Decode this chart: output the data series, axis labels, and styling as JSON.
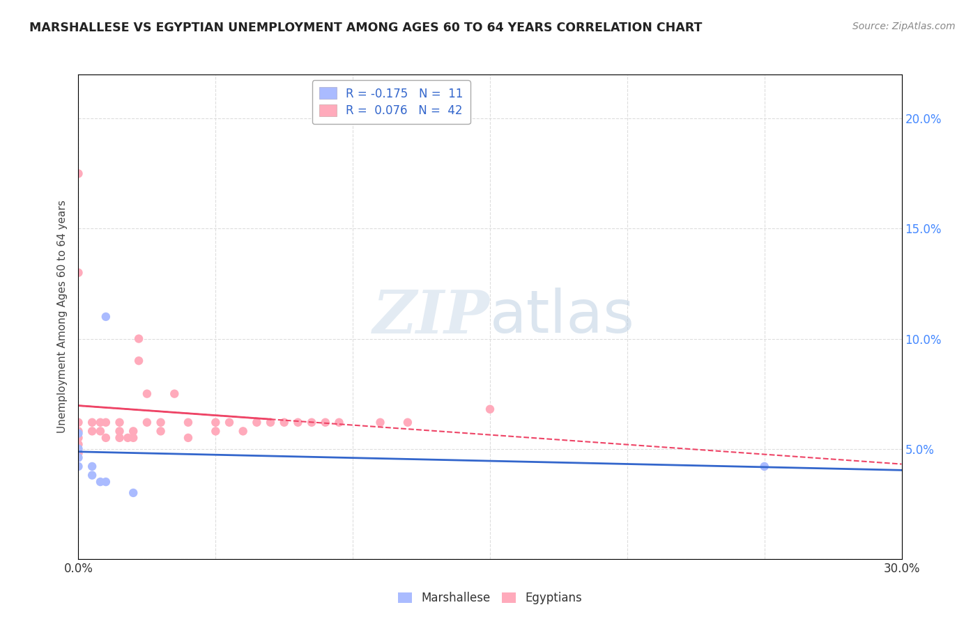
{
  "title": "MARSHALLESE VS EGYPTIAN UNEMPLOYMENT AMONG AGES 60 TO 64 YEARS CORRELATION CHART",
  "source": "Source: ZipAtlas.com",
  "ylabel": "Unemployment Among Ages 60 to 64 years",
  "xlim": [
    0.0,
    0.3
  ],
  "ylim": [
    0.0,
    0.22
  ],
  "xticks": [
    0.0,
    0.05,
    0.1,
    0.15,
    0.2,
    0.25,
    0.3
  ],
  "yticks": [
    0.0,
    0.05,
    0.1,
    0.15,
    0.2
  ],
  "legend_r1": "R = -0.175",
  "legend_n1": "N =  11",
  "legend_r2": "R =  0.076",
  "legend_n2": "N =  42",
  "marshallese_x": [
    0.0,
    0.0,
    0.0,
    0.0,
    0.005,
    0.005,
    0.008,
    0.01,
    0.01,
    0.25,
    0.02
  ],
  "marshallese_y": [
    0.057,
    0.05,
    0.046,
    0.042,
    0.042,
    0.038,
    0.035,
    0.035,
    0.11,
    0.042,
    0.03
  ],
  "egyptian_x": [
    0.0,
    0.0,
    0.0,
    0.0,
    0.0,
    0.0,
    0.0,
    0.005,
    0.005,
    0.008,
    0.008,
    0.01,
    0.01,
    0.015,
    0.015,
    0.015,
    0.018,
    0.02,
    0.02,
    0.022,
    0.022,
    0.025,
    0.025,
    0.03,
    0.03,
    0.035,
    0.04,
    0.04,
    0.05,
    0.05,
    0.055,
    0.06,
    0.065,
    0.07,
    0.075,
    0.08,
    0.085,
    0.09,
    0.095,
    0.11,
    0.12,
    0.15
  ],
  "egyptian_y": [
    0.062,
    0.058,
    0.055,
    0.052,
    0.048,
    0.175,
    0.13,
    0.062,
    0.058,
    0.062,
    0.058,
    0.062,
    0.055,
    0.055,
    0.062,
    0.058,
    0.055,
    0.058,
    0.055,
    0.1,
    0.09,
    0.062,
    0.075,
    0.058,
    0.062,
    0.075,
    0.062,
    0.055,
    0.062,
    0.058,
    0.062,
    0.058,
    0.062,
    0.062,
    0.062,
    0.062,
    0.062,
    0.062,
    0.062,
    0.062,
    0.062,
    0.068
  ],
  "marshallese_color": "#aabbff",
  "egyptian_color": "#ffaabb",
  "marshallese_line_color": "#3366cc",
  "egyptian_line_color": "#ee4466",
  "watermark_zip": "ZIP",
  "watermark_atlas": "atlas",
  "watermark_color_zip": "#c8d8e8",
  "watermark_color_atlas": "#b8cce0",
  "background_color": "#ffffff",
  "grid_color": "#dddddd"
}
